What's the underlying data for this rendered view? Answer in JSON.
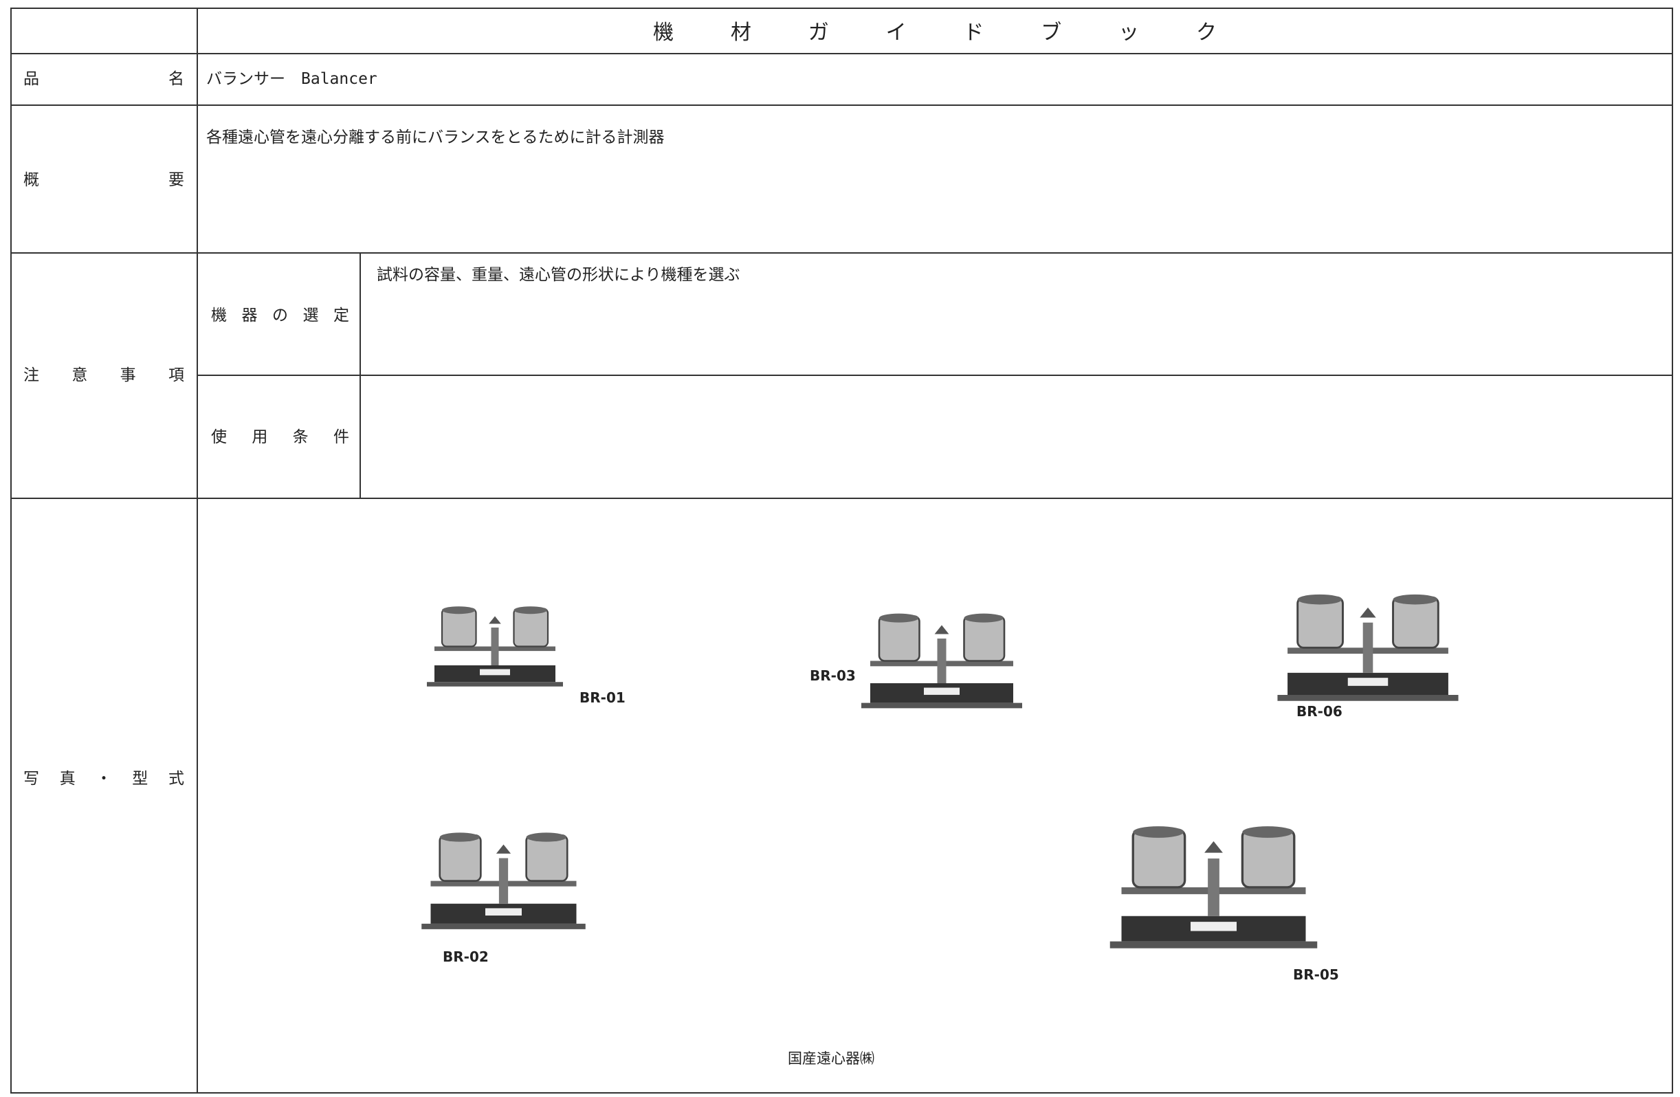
{
  "header": {
    "title": "機材ガイドブック"
  },
  "item_name": {
    "label": "品名",
    "value": "バランサー　Balancer"
  },
  "overview": {
    "label": "概要",
    "text": "各種遠心管を遠心分離する前にバランスをとるために計る計測器"
  },
  "precautions": {
    "label": "注意事項",
    "selection": {
      "label": "機器の選定",
      "text": "試料の容量、重量、遠心管の形状により機種を選ぶ"
    },
    "conditions": {
      "label": "使用条件"
    }
  },
  "photos": {
    "label": "写真・型式",
    "models": [
      "BR-01",
      "BR-03",
      "BR-06",
      "BR-02",
      "BR-05"
    ],
    "maker": "国産遠心器㈱"
  }
}
